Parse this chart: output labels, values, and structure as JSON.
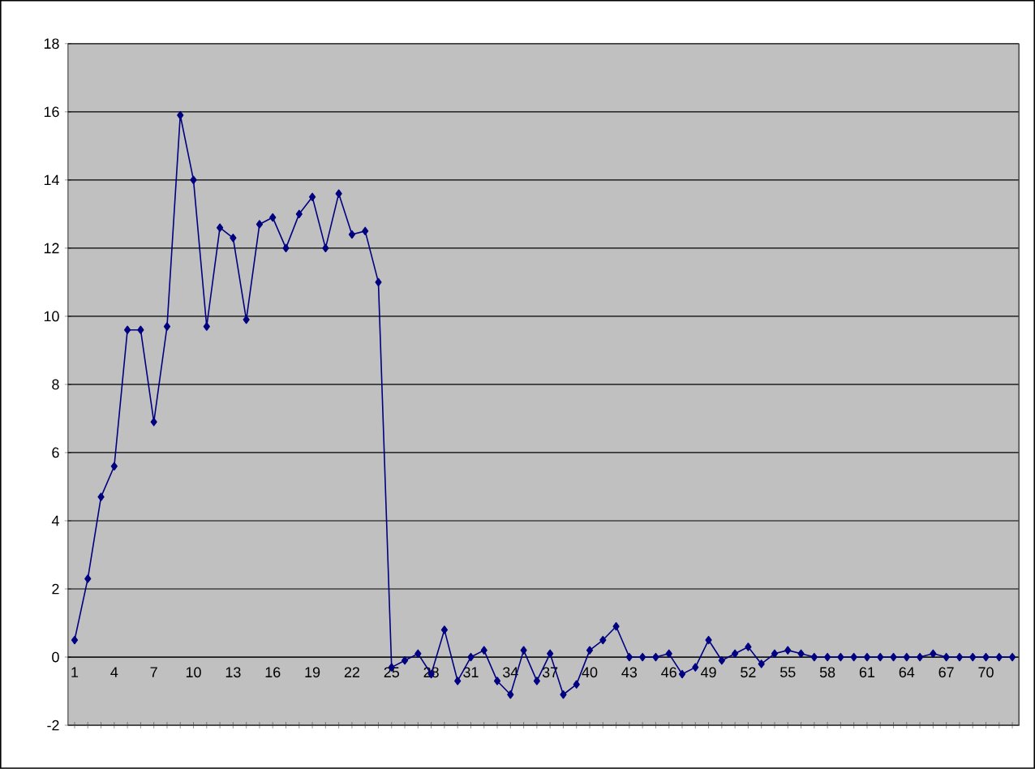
{
  "chart_data": {
    "type": "line",
    "categories": [
      "1",
      null,
      null,
      "4",
      null,
      null,
      "7",
      null,
      null,
      "10",
      null,
      null,
      "13",
      null,
      null,
      "16",
      null,
      null,
      "19",
      null,
      null,
      "22",
      null,
      null,
      "25",
      null,
      null,
      "28",
      null,
      null,
      "31",
      null,
      null,
      "34",
      null,
      null,
      "37",
      null,
      null,
      "40",
      null,
      null,
      "43",
      null,
      null,
      "46",
      null,
      null,
      "49",
      null,
      null,
      "52",
      null,
      null,
      "55",
      null,
      null,
      "58",
      null,
      null,
      "61",
      null,
      null,
      "64",
      null,
      null,
      "67",
      null,
      null,
      "70",
      null,
      null
    ],
    "series": [
      {
        "color": "#000080",
        "values": [
          0.5,
          2.3,
          4.7,
          5.6,
          9.6,
          9.6,
          6.9,
          9.7,
          15.9,
          14.0,
          9.7,
          12.6,
          12.3,
          9.9,
          12.7,
          12.9,
          12.0,
          13.0,
          13.5,
          12.0,
          13.6,
          12.4,
          12.5,
          11.0,
          -0.3,
          -0.1,
          0.1,
          -0.5,
          0.8,
          -0.7,
          0.0,
          0.2,
          -0.7,
          -1.1,
          0.2,
          -0.7,
          0.1,
          -1.1,
          -0.8,
          0.2,
          0.5,
          0.9,
          0.0,
          0.0,
          0.0,
          0.1,
          -0.5,
          -0.3,
          0.5,
          -0.1,
          0.1,
          0.3,
          -0.2,
          0.1,
          0.2,
          0.1,
          0.0,
          0.0,
          0.0,
          0.0,
          0.0,
          0.0,
          0.0,
          0.0,
          0.0,
          0.1,
          0.0,
          0.0,
          0.0,
          0.0,
          0.0,
          0.0
        ]
      }
    ],
    "ylim": [
      -2,
      18
    ],
    "yticks": [
      -2,
      0,
      2,
      4,
      6,
      8,
      10,
      12,
      14,
      16,
      18
    ],
    "grid": "y",
    "marker": "diamond",
    "line_style": "solid"
  }
}
